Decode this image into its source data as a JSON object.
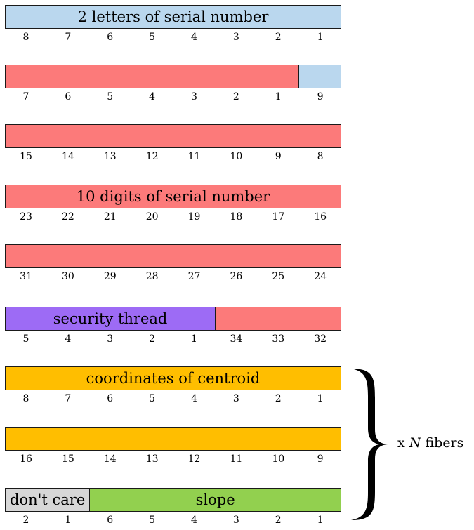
{
  "colors": {
    "blue": "#bad7ee",
    "red": "#fc7a7a",
    "purple": "#9d6bf5",
    "orange": "#ffbe00",
    "gray": "#d7d7d7",
    "green": "#92d04f"
  },
  "rows": [
    {
      "segments": [
        {
          "label": "2 letters of serial number",
          "color": "blue",
          "span": 8
        }
      ],
      "ticks": [
        "8",
        "7",
        "6",
        "5",
        "4",
        "3",
        "2",
        "1"
      ]
    },
    {
      "segments": [
        {
          "label": "",
          "color": "red",
          "span": 7
        },
        {
          "label": "",
          "color": "blue",
          "span": 1
        }
      ],
      "ticks": [
        "7",
        "6",
        "5",
        "4",
        "3",
        "2",
        "1",
        "9"
      ]
    },
    {
      "segments": [
        {
          "label": "",
          "color": "red",
          "span": 8
        }
      ],
      "ticks": [
        "15",
        "14",
        "13",
        "12",
        "11",
        "10",
        "9",
        "8"
      ]
    },
    {
      "segments": [
        {
          "label": "10 digits of serial number",
          "color": "red",
          "span": 8
        }
      ],
      "ticks": [
        "23",
        "22",
        "21",
        "20",
        "19",
        "18",
        "17",
        "16"
      ]
    },
    {
      "segments": [
        {
          "label": "",
          "color": "red",
          "span": 8
        }
      ],
      "ticks": [
        "31",
        "30",
        "29",
        "28",
        "27",
        "26",
        "25",
        "24"
      ]
    },
    {
      "segments": [
        {
          "label": "security thread",
          "color": "purple",
          "span": 5
        },
        {
          "label": "",
          "color": "red",
          "span": 3
        }
      ],
      "ticks": [
        "5",
        "4",
        "3",
        "2",
        "1",
        "34",
        "33",
        "32"
      ]
    },
    {
      "segments": [
        {
          "label": "coordinates of centroid",
          "color": "orange",
          "span": 8
        }
      ],
      "ticks": [
        "8",
        "7",
        "6",
        "5",
        "4",
        "3",
        "2",
        "1"
      ]
    },
    {
      "segments": [
        {
          "label": "",
          "color": "orange",
          "span": 8
        }
      ],
      "ticks": [
        "16",
        "15",
        "14",
        "13",
        "12",
        "11",
        "10",
        "9"
      ]
    },
    {
      "segments": [
        {
          "label": "don't care",
          "color": "gray",
          "span": 2
        },
        {
          "label": "slope",
          "color": "green",
          "span": 6
        }
      ],
      "ticks": [
        "2",
        "1",
        "6",
        "5",
        "4",
        "3",
        "2",
        "1"
      ]
    }
  ],
  "brace": {
    "prefix": "x",
    "var": "N",
    "suffix": "fibers"
  }
}
